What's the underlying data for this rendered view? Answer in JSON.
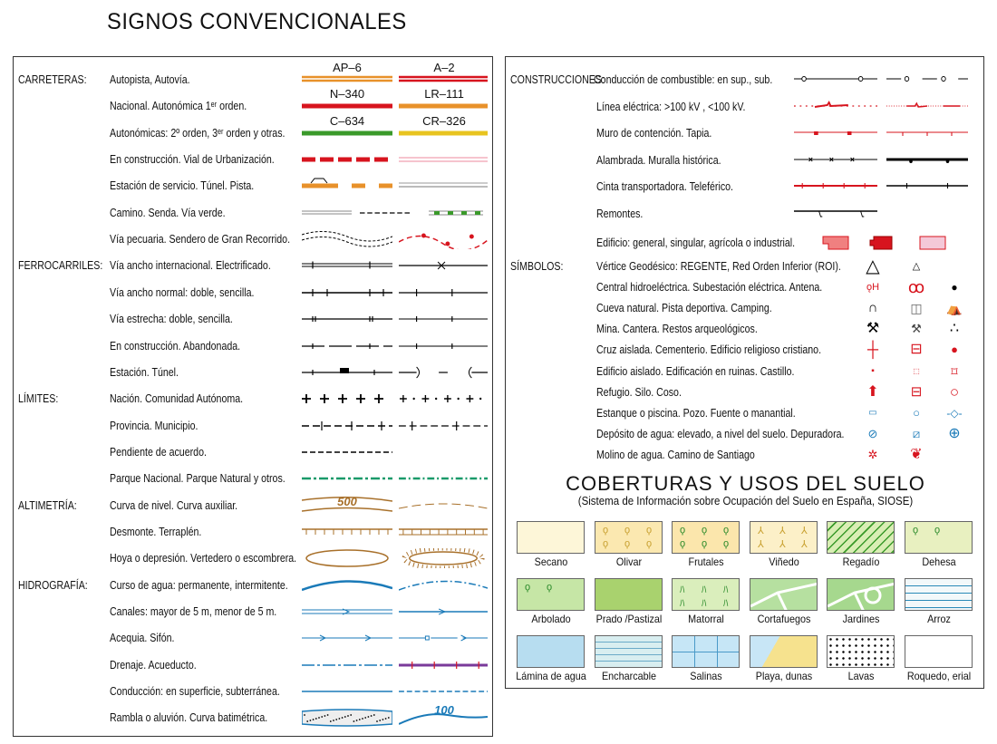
{
  "title": "SIGNOS CONVENCIONALES",
  "left": {
    "rows": [
      {
        "cat": "CARRETERAS:",
        "text": "Autopista, Autovía.",
        "codes": [
          "AP–6",
          "A–2"
        ],
        "symbols": [
          "autopista",
          "autovia"
        ]
      },
      {
        "cat": "",
        "text": "Nacional. Autonómica 1ᵉʳ orden.",
        "codes": [
          "N–340",
          "LR–111"
        ],
        "symbols": [
          "nacional",
          "autonomica-1"
        ]
      },
      {
        "cat": "",
        "text": "Autonómicas: 2º orden, 3ᵉʳ orden y otras.",
        "codes": [
          "C–634",
          "CR–326"
        ],
        "symbols": [
          "autonomica-2",
          "autonomica-3"
        ]
      },
      {
        "cat": "",
        "text": "En construcción. Vial de Urbanización.",
        "symbols": [
          "road-construction",
          "urban-road"
        ]
      },
      {
        "cat": "",
        "text": "Estación de servicio. Túnel. Pista.",
        "symbols": [
          "service-station-tunnel",
          "track"
        ]
      },
      {
        "cat": "",
        "text": "Camino. Senda. Vía verde.",
        "symbols": [
          "path",
          "trail",
          "greenway"
        ]
      },
      {
        "cat": "",
        "text": "Vía pecuaria. Sendero de Gran Recorrido.",
        "symbols": [
          "cattle-route",
          "gr-trail"
        ]
      },
      {
        "cat": "FERROCARRILES:",
        "text": "Vía ancho internacional. Electrificado.",
        "symbols": [
          "rail-intl",
          "rail-electric"
        ]
      },
      {
        "cat": "",
        "text": "Vía ancho normal: doble, sencilla.",
        "symbols": [
          "rail-double",
          "rail-single"
        ]
      },
      {
        "cat": "",
        "text": "Vía estrecha: doble, sencilla.",
        "symbols": [
          "narrow-double",
          "narrow-single"
        ]
      },
      {
        "cat": "",
        "text": "En construcción. Abandonada.",
        "symbols": [
          "rail-construction",
          "rail-abandoned"
        ]
      },
      {
        "cat": "",
        "text": "Estación. Túnel.",
        "symbols": [
          "rail-station",
          "rail-tunnel"
        ]
      },
      {
        "cat": "LÍMITES:",
        "text": "Nación. Comunidad Autónoma.",
        "symbols": [
          "nation",
          "region"
        ]
      },
      {
        "cat": "",
        "text": "Provincia. Municipio.",
        "symbols": [
          "province",
          "municipality"
        ]
      },
      {
        "cat": "",
        "text": "Pendiente de acuerdo.",
        "symbols": [
          "pending"
        ]
      },
      {
        "cat": "",
        "text": "Parque Nacional. Parque Natural y otros.",
        "symbols": [
          "national-park",
          "natural-park"
        ]
      },
      {
        "cat": "ALTIMETRÍA:",
        "text": "Curva de nivel. Curva auxiliar.",
        "codes": [
          "500",
          ""
        ],
        "symbols": [
          "contour",
          "aux-contour"
        ]
      },
      {
        "cat": "",
        "text": "Desmonte. Terraplén.",
        "symbols": [
          "cut",
          "embankment"
        ]
      },
      {
        "cat": "",
        "text": "Hoya o depresión. Vertedero o escombrera.",
        "symbols": [
          "depression",
          "dump"
        ]
      },
      {
        "cat": "HIDROGRAFÍA:",
        "text": "Curso de agua: permanente, intermitente.",
        "symbols": [
          "river",
          "intermittent-river"
        ]
      },
      {
        "cat": "",
        "text": "Canales: mayor de 5 m, menor de 5 m.",
        "symbols": [
          "canal-major",
          "canal-minor"
        ]
      },
      {
        "cat": "",
        "text": "Acequia. Sifón.",
        "symbols": [
          "ditch",
          "siphon"
        ]
      },
      {
        "cat": "",
        "text": "Drenaje. Acueducto.",
        "symbols": [
          "drain",
          "aqueduct"
        ]
      },
      {
        "cat": "",
        "text": "Conducción: en superficie, subterránea.",
        "symbols": [
          "pipe-surface",
          "pipe-underground"
        ]
      },
      {
        "cat": "",
        "text": "Rambla o aluvión. Curva batimétrica.",
        "codes": [
          "",
          "100"
        ],
        "symbols": [
          "alluvium",
          "bathymetric"
        ]
      }
    ]
  },
  "right": {
    "constructions": [
      {
        "cat": "CONSTRUCCIONES:",
        "text": "Conducción de combustible: en sup., sub.",
        "symbols": [
          "fuel-surface",
          "fuel-underground"
        ]
      },
      {
        "cat": "",
        "text": "Línea eléctrica: >100 kV , <100 kV.",
        "symbols": [
          "power-high",
          "power-low"
        ]
      },
      {
        "cat": "",
        "text": "Muro de contención. Tapia.",
        "symbols": [
          "retaining-wall",
          "wall"
        ]
      },
      {
        "cat": "",
        "text": "Alambrada. Muralla histórica.",
        "symbols": [
          "fence",
          "historic-wall"
        ]
      },
      {
        "cat": "",
        "text": "Cinta transportadora. Teleférico.",
        "symbols": [
          "conveyor",
          "cable-car"
        ]
      },
      {
        "cat": "",
        "text": "Remontes.",
        "symbols": [
          "ski-lift"
        ]
      },
      {
        "cat": "",
        "text": "Edificio: general, singular, agrícola o industrial.",
        "symbols": [
          "building-general",
          "building-singular",
          "building-industrial"
        ]
      }
    ],
    "symbols": [
      {
        "cat": "SÍMBOLOS:",
        "text": "Vértice Geodésico: REGENTE, Red Orden Inferior (ROI).",
        "icons": [
          "regente-icon",
          "roi-icon"
        ]
      },
      {
        "cat": "",
        "text": "Central hidroeléctrica. Subestación eléctrica. Antena.",
        "icons": [
          "hydro-plant-icon",
          "substation-icon",
          "antenna-icon"
        ]
      },
      {
        "cat": "",
        "text": "Cueva natural. Pista deportiva. Camping.",
        "icons": [
          "cave-icon",
          "sports-court-icon",
          "camping-icon"
        ]
      },
      {
        "cat": "",
        "text": "Mina. Cantera. Restos arqueológicos.",
        "icons": [
          "mine-icon",
          "quarry-icon",
          "archaeological-icon"
        ]
      },
      {
        "cat": "",
        "text": "Cruz aislada. Cementerio. Edificio religioso cristiano.",
        "icons": [
          "cross-icon",
          "cemetery-icon",
          "church-icon"
        ]
      },
      {
        "cat": "",
        "text": "Edificio aislado. Edificación en ruinas. Castillo.",
        "icons": [
          "isolated-building-icon",
          "ruins-icon",
          "castle-icon"
        ]
      },
      {
        "cat": "",
        "text": "Refugio. Silo. Coso.",
        "icons": [
          "shelter-icon",
          "silo-icon",
          "bullring-icon"
        ]
      },
      {
        "cat": "",
        "text": "Estanque o piscina. Pozo. Fuente o manantial.",
        "icons": [
          "pond-icon",
          "well-icon",
          "spring-icon"
        ]
      },
      {
        "cat": "",
        "text": "Depósito de agua: elevado, a nivel del suelo. Depuradora.",
        "icons": [
          "water-tower-icon",
          "water-tank-icon",
          "treatment-plant-icon"
        ]
      },
      {
        "cat": "",
        "text": "Molino de agua. Camino de Santiago",
        "icons": [
          "water-mill-icon",
          "santiago-shell-icon"
        ]
      }
    ],
    "coverage": {
      "title": "COBERTURAS Y USOS DEL SUELO",
      "subtitle": "(Sistema de Información sobre Ocupación del Suelo en España, SIOSE)",
      "items": [
        {
          "label": "Secano",
          "color": "#fdf6d8"
        },
        {
          "label": "Olivar",
          "color": "#fbe8b0"
        },
        {
          "label": "Frutales",
          "color": "#fbe6ac"
        },
        {
          "label": "Viñedo",
          "color": "#fcf0c8"
        },
        {
          "label": "Regadío",
          "color": "#d9eeb4"
        },
        {
          "label": "Dehesa",
          "color": "#e8f0c0"
        },
        {
          "label": "Arbolado",
          "color": "#c6e6a6"
        },
        {
          "label": "Prado /Pastizal",
          "color": "#a9d26e"
        },
        {
          "label": "Matorral",
          "color": "#daeebc"
        },
        {
          "label": "Cortafuegos",
          "color": "#b6e0a0"
        },
        {
          "label": "Jardines",
          "color": "#a6d88e"
        },
        {
          "label": "Arroz",
          "color": "#f2f8fa"
        },
        {
          "label": "Lámina de agua",
          "color": "#b7ddf0"
        },
        {
          "label": "Encharcable",
          "color": "#d8eef0"
        },
        {
          "label": "Salinas",
          "color": "#c6e6f6"
        },
        {
          "label": "Playa, dunas",
          "color": "#f6e28e"
        },
        {
          "label": "Lavas",
          "color": "#ffffff"
        },
        {
          "label": "Roquedo, erial",
          "color": "#ffffff"
        }
      ]
    }
  },
  "colors": {
    "red": "#d7141e",
    "orange": "#e8912a",
    "green": "#3a9a2a",
    "yellow": "#e8c420",
    "brown": "#a8702a",
    "blue": "#1a7ab8",
    "pink": "#f0a0b0"
  }
}
